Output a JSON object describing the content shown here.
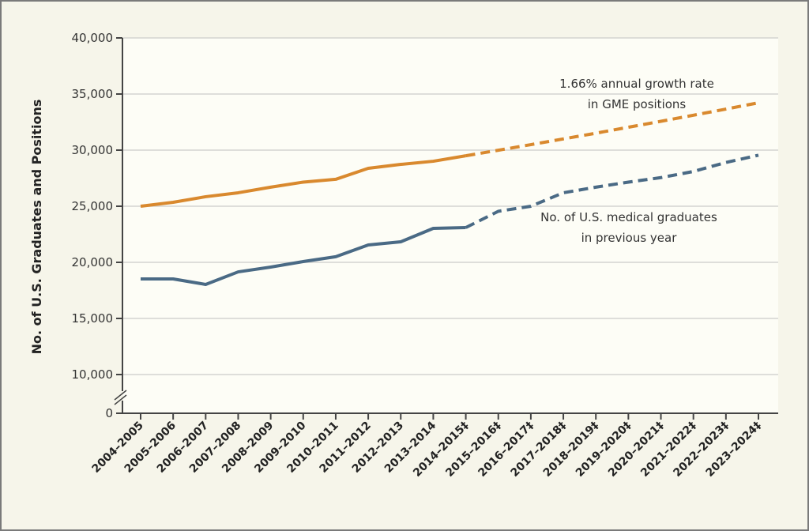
{
  "chart_data": {
    "type": "line",
    "title": "",
    "xlabel": "",
    "ylabel": "No. of U.S. Graduates and Positions",
    "ylim": [
      0,
      40000
    ],
    "axis_break": "between 0 and 10,000",
    "y_ticks": [
      0,
      10000,
      15000,
      20000,
      25000,
      30000,
      35000,
      40000
    ],
    "y_tick_labels": [
      "0",
      "10,000",
      "15,000",
      "20,000",
      "25,000",
      "30,000",
      "35,000",
      "40,000"
    ],
    "grid": true,
    "categories": [
      "2004–2005",
      "2005–2006",
      "2006–2007",
      "2007–2008",
      "2008–2009",
      "2009–2010",
      "2010–2011",
      "2011–2012",
      "2012–2013",
      "2013–2014",
      "2014–2015‡",
      "2015–2016‡",
      "2016–2017‡",
      "2017–2018‡",
      "2018–2019‡",
      "2019–2020‡",
      "2020–2021‡",
      "2021–2022‡",
      "2022–2023‡",
      "2023–2024‡"
    ],
    "projection_starts_at_index": 10,
    "series": [
      {
        "name": "GME positions",
        "color": "#d9892e",
        "annotation": [
          "1.66% annual growth rate",
          "in GME positions"
        ],
        "values": [
          25000,
          25350,
          25850,
          26200,
          26700,
          27150,
          27400,
          28380,
          28730,
          29010,
          29500,
          29990,
          30490,
          31000,
          31510,
          32040,
          32570,
          33110,
          33660,
          34220
        ]
      },
      {
        "name": "No. of U.S. medical graduates in previous year",
        "color": "#4a6a85",
        "annotation": [
          "No. of U.S. medical graduates",
          "in previous year"
        ],
        "values": [
          18520,
          18520,
          18030,
          19150,
          19580,
          20070,
          20500,
          21550,
          21830,
          23030,
          23100,
          24550,
          25000,
          26200,
          26700,
          27150,
          27550,
          28100,
          28900,
          29550
        ]
      }
    ]
  }
}
